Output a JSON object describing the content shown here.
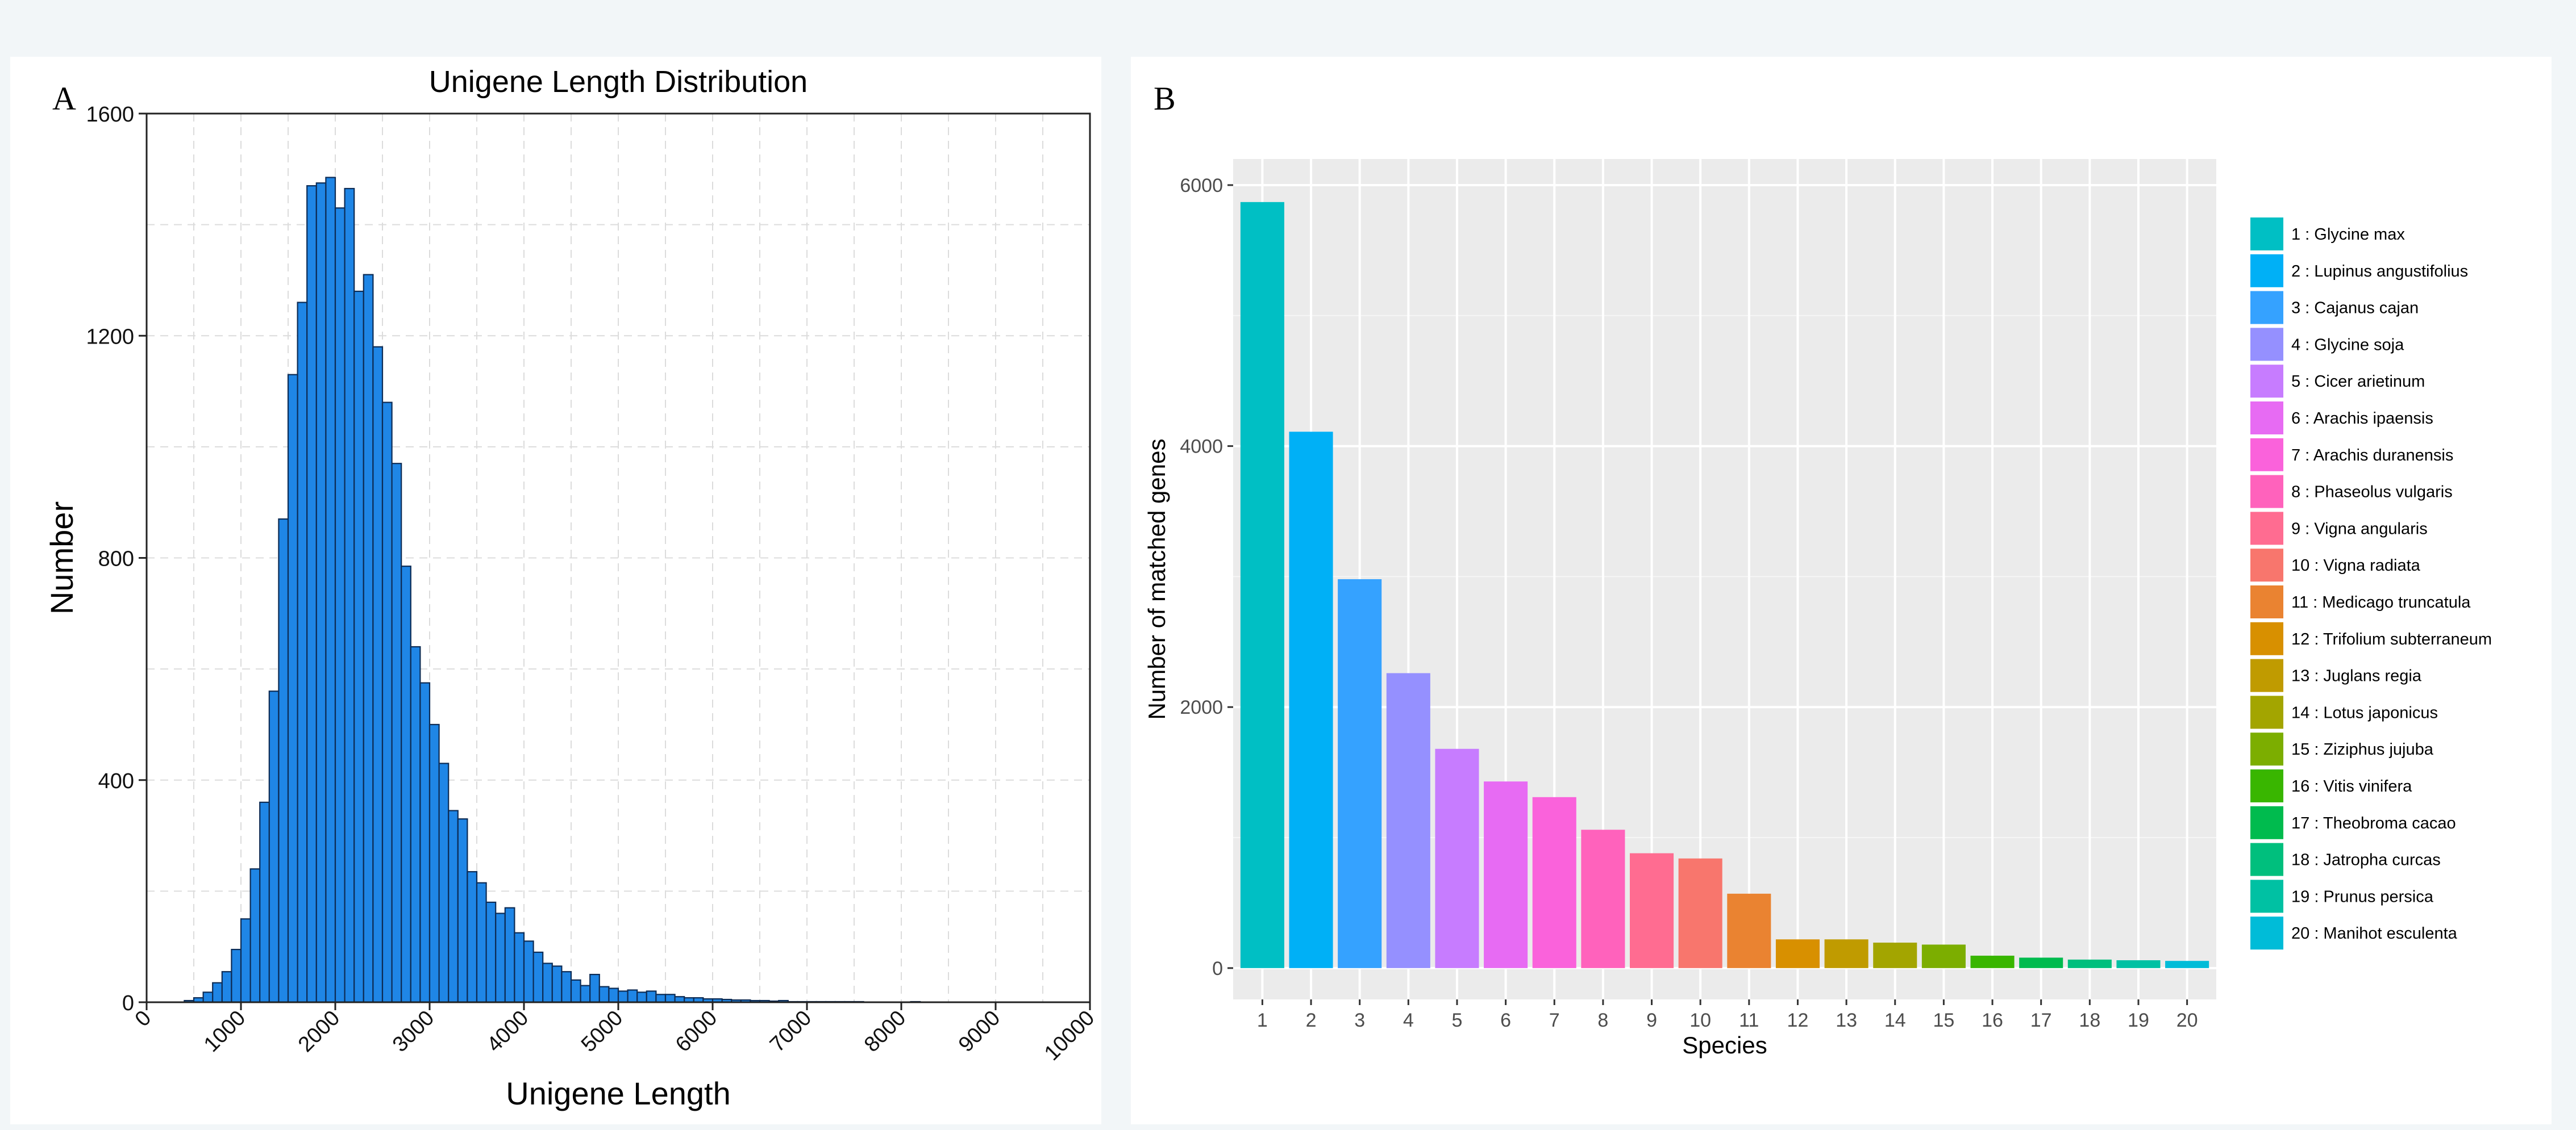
{
  "panels": {
    "a_letter": "A",
    "b_letter": "B"
  },
  "chart_data": [
    {
      "type": "bar",
      "subtype": "histogram",
      "title": "Unigene Length Distribution",
      "xlabel": "Unigene Length",
      "ylabel": "Number",
      "xlim": [
        0,
        10000
      ],
      "ylim": [
        0,
        1600
      ],
      "xticks": [
        "0",
        "1000",
        "2000",
        "3000",
        "4000",
        "5000",
        "6000",
        "7000",
        "8000",
        "9000",
        "10000"
      ],
      "yticks": [
        "0",
        "400",
        "800",
        "1200",
        "1600"
      ],
      "bin_width": 100,
      "bin_start": 400,
      "values": [
        3,
        8,
        18,
        35,
        55,
        95,
        150,
        240,
        360,
        560,
        870,
        1130,
        1260,
        1470,
        1475,
        1485,
        1430,
        1465,
        1280,
        1310,
        1180,
        1080,
        970,
        785,
        640,
        575,
        500,
        430,
        345,
        330,
        235,
        215,
        180,
        160,
        170,
        125,
        110,
        90,
        70,
        65,
        55,
        40,
        30,
        50,
        28,
        25,
        20,
        22,
        18,
        20,
        14,
        14,
        10,
        8,
        8,
        6,
        6,
        5,
        4,
        4,
        3,
        3,
        2,
        3,
        1,
        1,
        1,
        1,
        1,
        1,
        1,
        1,
        0,
        0,
        0,
        0,
        0,
        1,
        0,
        0,
        0,
        0,
        0,
        0,
        0,
        0,
        0,
        0,
        0,
        0,
        0,
        0,
        0,
        0,
        0,
        0
      ],
      "bar_color": "#1f86e6",
      "grid": true
    },
    {
      "type": "bar",
      "title": "",
      "xlabel": "Species",
      "ylabel": "Number of matched genes",
      "ylim": [
        0,
        6000
      ],
      "yticks": [
        "0",
        "2000",
        "4000",
        "6000"
      ],
      "categories": [
        "1",
        "2",
        "3",
        "4",
        "5",
        "6",
        "7",
        "8",
        "9",
        "10",
        "11",
        "12",
        "13",
        "14",
        "15",
        "16",
        "17",
        "18",
        "19",
        "20"
      ],
      "values": [
        5870,
        4110,
        2980,
        2260,
        1680,
        1430,
        1310,
        1060,
        880,
        840,
        570,
        220,
        220,
        195,
        180,
        95,
        80,
        65,
        60,
        55
      ],
      "legend": [
        "1 : Glycine max",
        "2 : Lupinus angustifolius",
        "3 : Cajanus cajan",
        "4 : Glycine soja",
        "5 : Cicer arietinum",
        "6 : Arachis ipaensis",
        "7 : Arachis duranensis",
        "8 : Phaseolus vulgaris",
        "9 : Vigna angularis",
        "10 : Vigna radiata",
        "11 : Medicago truncatula",
        "12 : Trifolium subterraneum",
        "13 : Juglans regia",
        "14 : Lotus japonicus",
        "15 : Ziziphus jujuba",
        "16 : Vitis vinifera",
        "17 : Theobroma cacao",
        "18 : Jatropha curcas",
        "19 : Prunus persica",
        "20 : Manihot esculenta"
      ],
      "colors": [
        "#00bfc4",
        "#00b0f6",
        "#35a2ff",
        "#9590ff",
        "#c77cff",
        "#e76bf3",
        "#fa62db",
        "#ff62bc",
        "#ff6c91",
        "#f8766d",
        "#ea8331",
        "#d89000",
        "#c09b00",
        "#a3a500",
        "#7cae00",
        "#39b600",
        "#00bb4e",
        "#00bf7d",
        "#00c1a3",
        "#00bcd8"
      ],
      "legend_placement": "right",
      "grid": true
    }
  ]
}
